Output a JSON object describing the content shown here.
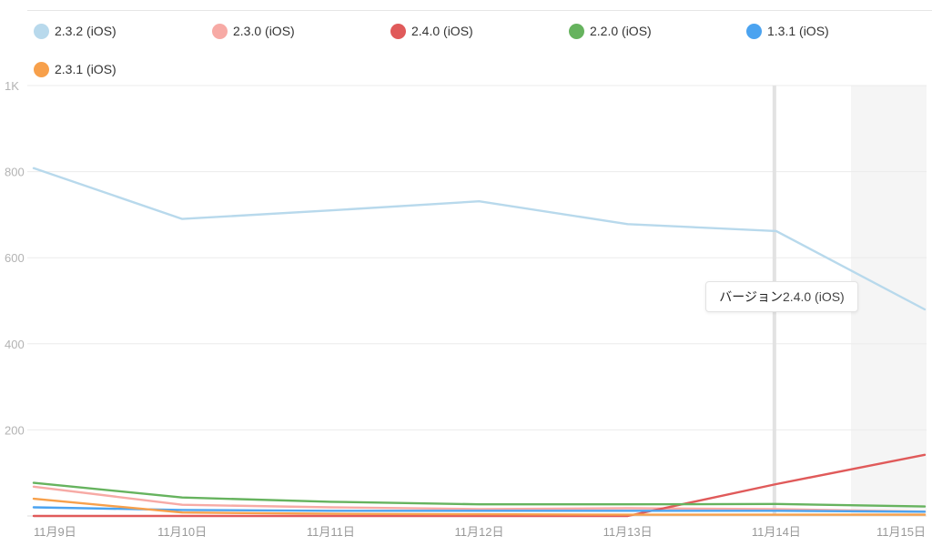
{
  "legend": [
    {
      "label": "2.3.2 (iOS)",
      "color": "#b8d9ec"
    },
    {
      "label": "2.3.0 (iOS)",
      "color": "#f7aaa5"
    },
    {
      "label": "2.4.0 (iOS)",
      "color": "#e05a5a"
    },
    {
      "label": "2.2.0 (iOS)",
      "color": "#66b35e"
    },
    {
      "label": "1.3.1 (iOS)",
      "color": "#4ba3f0"
    },
    {
      "label": "2.3.1 (iOS)",
      "color": "#f7a04b"
    }
  ],
  "tooltip": {
    "label": "バージョン",
    "value": "2.4.0 (iOS)"
  },
  "chart_data": {
    "type": "line",
    "categories": [
      "11月9日",
      "11月10日",
      "11月11日",
      "11月12日",
      "11月13日",
      "11月14日",
      "11月15日"
    ],
    "y_ticks": [
      "1K",
      "800",
      "600",
      "400",
      "200"
    ],
    "ylim": [
      0,
      1000
    ],
    "grid": true,
    "legend_position": "top",
    "series": [
      {
        "name": "2.3.2 (iOS)",
        "color": "#b8d9ec",
        "values": [
          808,
          690,
          710,
          731,
          678,
          662,
          480
        ]
      },
      {
        "name": "2.3.0 (iOS)",
        "color": "#f7aaa5",
        "values": [
          68,
          26,
          20,
          16,
          18,
          16,
          10
        ]
      },
      {
        "name": "2.4.0 (iOS)",
        "color": "#e05a5a",
        "values": [
          0,
          0,
          0,
          0,
          0,
          74,
          142
        ]
      },
      {
        "name": "2.2.0 (iOS)",
        "color": "#66b35e",
        "values": [
          77,
          43,
          33,
          27,
          27,
          28,
          22
        ]
      },
      {
        "name": "1.3.1 (iOS)",
        "color": "#4ba3f0",
        "values": [
          20,
          14,
          12,
          12,
          12,
          12,
          10
        ]
      },
      {
        "name": "2.3.1 (iOS)",
        "color": "#f7a04b",
        "values": [
          40,
          8,
          5,
          4,
          3,
          3,
          3
        ]
      }
    ]
  }
}
